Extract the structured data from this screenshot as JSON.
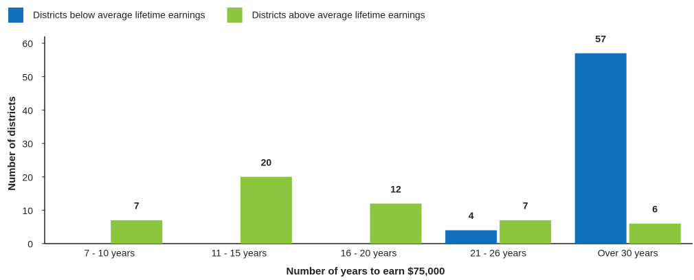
{
  "chart_data": {
    "type": "bar",
    "x_label": "Number of years to earn $75,000",
    "y_label": "Number of districts",
    "categories": [
      "7 - 10 years",
      "11 - 15 years",
      "16 - 20 years",
      "21 - 26 years",
      "Over 30 years"
    ],
    "series": [
      {
        "name": "Districts below average lifetime earnings",
        "color": "#1170bd",
        "values": [
          null,
          null,
          null,
          4,
          57
        ]
      },
      {
        "name": "Districts above average lifetime earnings",
        "color": "#8cc63f",
        "values": [
          7,
          20,
          12,
          7,
          6
        ]
      }
    ],
    "ylim": [
      0,
      60
    ],
    "yticks": [
      0,
      10,
      20,
      30,
      40,
      50,
      60
    ],
    "grid": false,
    "legend": "top-left"
  }
}
